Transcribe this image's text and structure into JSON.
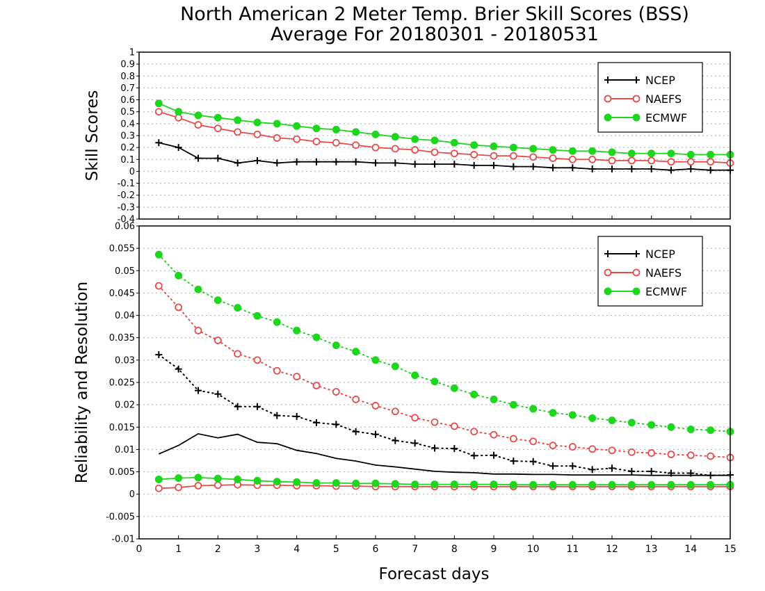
{
  "title_line1": "North American 2 Meter Temp. Brier Skill Scores (BSS)",
  "title_line2": "Average For 20180301 - 20180531",
  "xlabel": "Forecast days",
  "colors": {
    "NCEP": "#000000",
    "NAEFS": "#e84a4a",
    "ECMWF": "#1ed61e"
  },
  "chart_data": [
    {
      "type": "line",
      "ylabel": "Skill Scores",
      "xlim": [
        0,
        15
      ],
      "ylim": [
        -0.4,
        1
      ],
      "x_ticks": [
        "0",
        "1",
        "2",
        "3",
        "4",
        "5",
        "6",
        "7",
        "8",
        "9",
        "10",
        "11",
        "12",
        "13",
        "14",
        "15"
      ],
      "y_ticks": [
        "1",
        "0.9",
        "0.8",
        "0.7",
        "0.6",
        "0.5",
        "0.4",
        "0.3",
        "0.2",
        "0.1",
        "0",
        "-0.1",
        "-0.2",
        "-0.3",
        "-0.4"
      ],
      "grid": true,
      "legend": "top-right",
      "x": [
        0.5,
        1,
        1.5,
        2,
        2.5,
        3,
        3.5,
        4,
        4.5,
        5,
        5.5,
        6,
        6.5,
        7,
        7.5,
        8,
        8.5,
        9,
        9.5,
        10,
        10.5,
        11,
        11.5,
        12,
        12.5,
        13,
        13.5,
        14,
        14.5,
        15
      ],
      "series": [
        {
          "name": "NCEP",
          "marker": "plus",
          "line": "solid",
          "values": [
            0.24,
            0.2,
            0.11,
            0.11,
            0.07,
            0.09,
            0.07,
            0.08,
            0.08,
            0.08,
            0.08,
            0.07,
            0.07,
            0.06,
            0.06,
            0.06,
            0.05,
            0.05,
            0.04,
            0.04,
            0.03,
            0.03,
            0.02,
            0.02,
            0.02,
            0.02,
            0.01,
            0.02,
            0.01,
            0.01
          ]
        },
        {
          "name": "NAEFS",
          "marker": "open-circle",
          "line": "solid",
          "values": [
            0.5,
            0.45,
            0.39,
            0.36,
            0.33,
            0.31,
            0.28,
            0.27,
            0.25,
            0.24,
            0.22,
            0.2,
            0.19,
            0.18,
            0.16,
            0.15,
            0.14,
            0.13,
            0.13,
            0.12,
            0.11,
            0.1,
            0.1,
            0.09,
            0.09,
            0.09,
            0.08,
            0.08,
            0.08,
            0.07
          ]
        },
        {
          "name": "ECMWF",
          "marker": "filled-circle",
          "line": "solid",
          "values": [
            0.57,
            0.5,
            0.47,
            0.45,
            0.43,
            0.41,
            0.4,
            0.38,
            0.36,
            0.35,
            0.33,
            0.31,
            0.29,
            0.27,
            0.26,
            0.24,
            0.22,
            0.21,
            0.2,
            0.19,
            0.18,
            0.17,
            0.17,
            0.16,
            0.15,
            0.15,
            0.15,
            0.14,
            0.14,
            0.14
          ]
        }
      ]
    },
    {
      "type": "line",
      "ylabel": "Reliability and Resolution",
      "xlim": [
        0,
        15
      ],
      "ylim": [
        -0.01,
        0.06
      ],
      "x_ticks": [
        "0",
        "1",
        "2",
        "3",
        "4",
        "5",
        "6",
        "7",
        "8",
        "9",
        "10",
        "11",
        "12",
        "13",
        "14",
        "15"
      ],
      "y_ticks": [
        "0.06",
        "0.055",
        "0.05",
        "0.045",
        "0.04",
        "0.035",
        "0.03",
        "0.025",
        "0.02",
        "0.015",
        "0.01",
        "0.005",
        "0",
        "-0.005",
        "-0.01"
      ],
      "grid": true,
      "legend": "top-right",
      "x": [
        0.5,
        1,
        1.5,
        2,
        2.5,
        3,
        3.5,
        4,
        4.5,
        5,
        5.5,
        6,
        6.5,
        7,
        7.5,
        8,
        8.5,
        9,
        9.5,
        10,
        10.5,
        11,
        11.5,
        12,
        12.5,
        13,
        13.5,
        14,
        14.5,
        15
      ],
      "series": [
        {
          "name": "NCEP",
          "marker": "plus",
          "line": "dotted",
          "values": [
            0.0312,
            0.028,
            0.0232,
            0.0224,
            0.0196,
            0.0196,
            0.0176,
            0.0174,
            0.016,
            0.0156,
            0.014,
            0.0134,
            0.012,
            0.0114,
            0.0103,
            0.0102,
            0.0086,
            0.0087,
            0.0074,
            0.0073,
            0.0063,
            0.0063,
            0.0055,
            0.0058,
            0.0051,
            0.0051,
            0.0047,
            0.0047,
            0.0042,
            0.0043
          ]
        },
        {
          "name": "NAEFS",
          "marker": "open-circle",
          "line": "dotted",
          "values": [
            0.0466,
            0.0418,
            0.0366,
            0.0344,
            0.0314,
            0.03,
            0.0276,
            0.0263,
            0.0243,
            0.0229,
            0.0212,
            0.0198,
            0.0185,
            0.0171,
            0.0161,
            0.0152,
            0.014,
            0.0133,
            0.0124,
            0.0118,
            0.0109,
            0.0106,
            0.0101,
            0.0098,
            0.0094,
            0.0092,
            0.0089,
            0.0087,
            0.0085,
            0.0082
          ]
        },
        {
          "name": "ECMWF",
          "marker": "filled-circle",
          "line": "dotted",
          "values": [
            0.0536,
            0.0489,
            0.0458,
            0.0434,
            0.0417,
            0.0399,
            0.0385,
            0.0366,
            0.0351,
            0.0333,
            0.0319,
            0.03,
            0.0286,
            0.0266,
            0.0252,
            0.0237,
            0.0223,
            0.0212,
            0.02,
            0.0191,
            0.0182,
            0.0177,
            0.017,
            0.0165,
            0.016,
            0.0155,
            0.015,
            0.0145,
            0.0143,
            0.014
          ]
        },
        {
          "name": "NCEP",
          "marker": "none",
          "line": "solid",
          "values": [
            0.009,
            0.0109,
            0.0135,
            0.0126,
            0.0134,
            0.0116,
            0.0113,
            0.0098,
            0.0091,
            0.008,
            0.0074,
            0.0065,
            0.0061,
            0.0056,
            0.0051,
            0.0049,
            0.0048,
            0.0045,
            0.0045,
            0.0044,
            0.0044,
            0.0043,
            0.0043,
            0.0043,
            0.0043,
            0.0042,
            0.0042,
            0.0042,
            0.0042,
            0.0042
          ]
        },
        {
          "name": "NAEFS",
          "marker": "open-circle",
          "line": "solid",
          "values": [
            0.0013,
            0.0015,
            0.0019,
            0.002,
            0.0021,
            0.002,
            0.002,
            0.0019,
            0.0019,
            0.0018,
            0.0018,
            0.0017,
            0.0017,
            0.0017,
            0.0017,
            0.0017,
            0.0017,
            0.0017,
            0.0017,
            0.0017,
            0.0017,
            0.0017,
            0.0017,
            0.0017,
            0.0017,
            0.0017,
            0.0017,
            0.0017,
            0.0017,
            0.0017
          ]
        },
        {
          "name": "ECMWF",
          "marker": "filled-circle",
          "line": "solid",
          "values": [
            0.0033,
            0.0036,
            0.0037,
            0.0035,
            0.0033,
            0.003,
            0.0028,
            0.0027,
            0.0025,
            0.0025,
            0.0024,
            0.0024,
            0.0023,
            0.0022,
            0.0022,
            0.0022,
            0.0022,
            0.0022,
            0.0021,
            0.0021,
            0.0021,
            0.0021,
            0.0021,
            0.0021,
            0.0021,
            0.0021,
            0.0021,
            0.0021,
            0.0021,
            0.0021
          ]
        }
      ]
    }
  ]
}
